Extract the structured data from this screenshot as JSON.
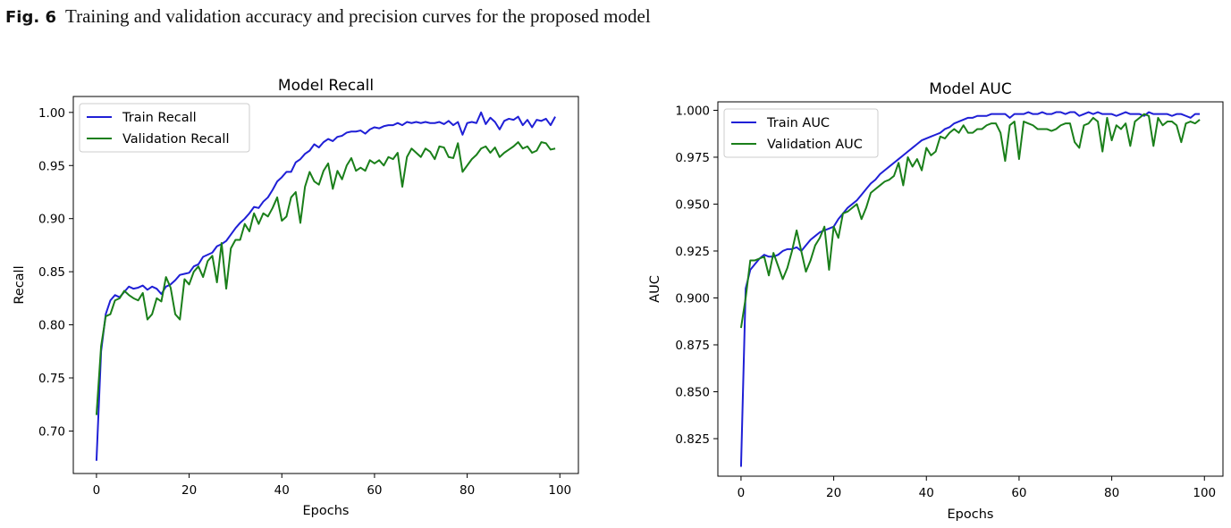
{
  "caption": {
    "figure_label": "Fig. 6",
    "text": "Training and validation accuracy and precision curves for the proposed model"
  },
  "colors": {
    "train": "#1f1fd6",
    "validation": "#1a7f1a"
  },
  "chart_data": [
    {
      "type": "line",
      "title": "Model Recall",
      "xlabel": "Epochs",
      "ylabel": "Recall",
      "xlim": [
        -5,
        104
      ],
      "ylim": [
        0.66,
        1.015
      ],
      "x_ticks": [
        "0",
        "20",
        "40",
        "60",
        "80",
        "100"
      ],
      "y_ticks": [
        "0.70",
        "0.75",
        "0.80",
        "0.85",
        "0.90",
        "0.95",
        "1.00"
      ],
      "legend_position": "upper-left",
      "series": [
        {
          "name": "Train Recall",
          "values": [
            0.672,
            0.775,
            0.81,
            0.823,
            0.828,
            0.826,
            0.831,
            0.836,
            0.834,
            0.835,
            0.837,
            0.833,
            0.836,
            0.834,
            0.829,
            0.836,
            0.838,
            0.842,
            0.847,
            0.848,
            0.849,
            0.855,
            0.857,
            0.864,
            0.866,
            0.868,
            0.874,
            0.876,
            0.879,
            0.885,
            0.891,
            0.896,
            0.9,
            0.905,
            0.911,
            0.91,
            0.916,
            0.92,
            0.927,
            0.935,
            0.939,
            0.944,
            0.944,
            0.953,
            0.956,
            0.961,
            0.964,
            0.97,
            0.967,
            0.972,
            0.975,
            0.973,
            0.977,
            0.978,
            0.981,
            0.982,
            0.982,
            0.983,
            0.98,
            0.984,
            0.986,
            0.985,
            0.987,
            0.988,
            0.988,
            0.99,
            0.988,
            0.991,
            0.99,
            0.991,
            0.99,
            0.991,
            0.99,
            0.99,
            0.991,
            0.989,
            0.992,
            0.988,
            0.991,
            0.979,
            0.99,
            0.991,
            0.99,
            1.0,
            0.989,
            0.995,
            0.991,
            0.984,
            0.992,
            0.994,
            0.993,
            0.996,
            0.988,
            0.993,
            0.986,
            0.993,
            0.992,
            0.994,
            0.988,
            0.996
          ]
        },
        {
          "name": "Validation Recall",
          "values": [
            0.715,
            0.78,
            0.808,
            0.81,
            0.823,
            0.825,
            0.832,
            0.828,
            0.825,
            0.823,
            0.83,
            0.805,
            0.81,
            0.825,
            0.822,
            0.845,
            0.835,
            0.81,
            0.805,
            0.843,
            0.838,
            0.85,
            0.855,
            0.845,
            0.86,
            0.865,
            0.84,
            0.877,
            0.834,
            0.872,
            0.88,
            0.88,
            0.895,
            0.888,
            0.905,
            0.895,
            0.905,
            0.902,
            0.91,
            0.92,
            0.898,
            0.902,
            0.92,
            0.925,
            0.896,
            0.93,
            0.944,
            0.935,
            0.932,
            0.945,
            0.952,
            0.928,
            0.945,
            0.937,
            0.95,
            0.957,
            0.945,
            0.948,
            0.945,
            0.955,
            0.952,
            0.955,
            0.95,
            0.958,
            0.956,
            0.962,
            0.93,
            0.958,
            0.966,
            0.962,
            0.958,
            0.966,
            0.963,
            0.956,
            0.968,
            0.967,
            0.958,
            0.957,
            0.971,
            0.944,
            0.95,
            0.956,
            0.96,
            0.966,
            0.968,
            0.962,
            0.967,
            0.958,
            0.962,
            0.965,
            0.968,
            0.972,
            0.966,
            0.968,
            0.962,
            0.964,
            0.972,
            0.971,
            0.965,
            0.966
          ]
        }
      ]
    },
    {
      "type": "line",
      "title": "Model AUC",
      "xlabel": "Epochs",
      "ylabel": "AUC",
      "xlim": [
        -5,
        104
      ],
      "ylim": [
        0.805,
        1.0045
      ],
      "x_ticks": [
        "0",
        "20",
        "40",
        "60",
        "80",
        "100"
      ],
      "y_ticks": [
        "0.825",
        "0.850",
        "0.875",
        "0.900",
        "0.925",
        "0.950",
        "0.975",
        "1.000"
      ],
      "legend_position": "upper-left",
      "series": [
        {
          "name": "Train AUC",
          "values": [
            0.81,
            0.905,
            0.915,
            0.918,
            0.921,
            0.923,
            0.922,
            0.922,
            0.923,
            0.925,
            0.926,
            0.926,
            0.927,
            0.925,
            0.928,
            0.931,
            0.933,
            0.935,
            0.936,
            0.937,
            0.938,
            0.942,
            0.945,
            0.948,
            0.95,
            0.952,
            0.955,
            0.958,
            0.961,
            0.963,
            0.966,
            0.968,
            0.97,
            0.972,
            0.974,
            0.976,
            0.978,
            0.98,
            0.982,
            0.984,
            0.985,
            0.986,
            0.987,
            0.988,
            0.99,
            0.991,
            0.993,
            0.994,
            0.995,
            0.996,
            0.996,
            0.997,
            0.997,
            0.997,
            0.998,
            0.998,
            0.998,
            0.998,
            0.996,
            0.998,
            0.998,
            0.998,
            0.999,
            0.998,
            0.998,
            0.999,
            0.998,
            0.998,
            0.999,
            0.999,
            0.998,
            0.999,
            0.999,
            0.997,
            0.998,
            0.999,
            0.998,
            0.999,
            0.998,
            0.998,
            0.998,
            0.997,
            0.998,
            0.999,
            0.998,
            0.998,
            0.998,
            0.997,
            0.999,
            0.998,
            0.998,
            0.998,
            0.998,
            0.997,
            0.998,
            0.998,
            0.997,
            0.996,
            0.998,
            0.998
          ]
        },
        {
          "name": "Validation AUC",
          "values": [
            0.884,
            0.9,
            0.92,
            0.92,
            0.921,
            0.922,
            0.912,
            0.924,
            0.917,
            0.91,
            0.916,
            0.925,
            0.936,
            0.925,
            0.914,
            0.92,
            0.928,
            0.932,
            0.938,
            0.915,
            0.938,
            0.932,
            0.945,
            0.946,
            0.948,
            0.95,
            0.942,
            0.948,
            0.956,
            0.958,
            0.96,
            0.962,
            0.963,
            0.965,
            0.972,
            0.96,
            0.975,
            0.97,
            0.974,
            0.968,
            0.98,
            0.976,
            0.978,
            0.986,
            0.985,
            0.988,
            0.99,
            0.988,
            0.992,
            0.988,
            0.988,
            0.99,
            0.99,
            0.992,
            0.993,
            0.993,
            0.988,
            0.973,
            0.992,
            0.994,
            0.974,
            0.994,
            0.993,
            0.992,
            0.99,
            0.99,
            0.99,
            0.989,
            0.99,
            0.992,
            0.993,
            0.993,
            0.983,
            0.98,
            0.992,
            0.993,
            0.996,
            0.994,
            0.978,
            0.996,
            0.984,
            0.992,
            0.99,
            0.993,
            0.981,
            0.994,
            0.996,
            0.998,
            0.997,
            0.981,
            0.996,
            0.992,
            0.994,
            0.994,
            0.992,
            0.983,
            0.993,
            0.994,
            0.993,
            0.995
          ]
        }
      ]
    }
  ]
}
